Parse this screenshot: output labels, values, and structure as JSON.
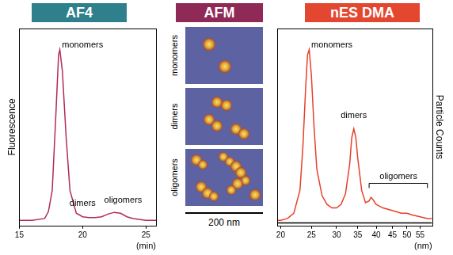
{
  "chart_data": [
    {
      "type": "line",
      "title": "AF4",
      "x": [
        15,
        16,
        17,
        17.3,
        17.6,
        17.9,
        18.1,
        18.2,
        18.4,
        18.7,
        19,
        19.5,
        20,
        20.5,
        21,
        21.5,
        22,
        22.5,
        23,
        23.5,
        24,
        25,
        25.8
      ],
      "series": [
        {
          "color": "#b22a5b",
          "values": [
            0.03,
            0.03,
            0.04,
            0.08,
            0.2,
            0.65,
            0.97,
            1.0,
            0.88,
            0.5,
            0.2,
            0.07,
            0.05,
            0.045,
            0.045,
            0.05,
            0.065,
            0.075,
            0.07,
            0.05,
            0.04,
            0.03,
            0.03
          ]
        }
      ],
      "xlim": [
        15,
        25.8
      ],
      "xticks": [
        15,
        20,
        25
      ],
      "ylim": [
        0,
        1.12
      ],
      "yticks": [],
      "xlabel": "(min)",
      "ylabel": "Fluorescence",
      "tick_labels": "x",
      "grid": false,
      "annotations": [
        {
          "text": "monomers",
          "x": 20.0,
          "y": 1.0
        },
        {
          "text": "dimers",
          "x": 20.0,
          "y": 0.1
        },
        {
          "text": "oligomers",
          "x": 23.2,
          "y": 0.12
        }
      ]
    },
    {
      "type": "line",
      "title": "nES DMA",
      "x": [
        19.5,
        20,
        21,
        22,
        23,
        23.5,
        24,
        24.3,
        24.6,
        25,
        25.5,
        26,
        27,
        28,
        29,
        30,
        31,
        32,
        33,
        33.5,
        34,
        34.5,
        35,
        36,
        37,
        38,
        38.5,
        39,
        40,
        42,
        44,
        46,
        48,
        50,
        52,
        55,
        58,
        60
      ],
      "series": [
        {
          "color": "#e8402a",
          "values": [
            0.03,
            0.03,
            0.04,
            0.07,
            0.2,
            0.45,
            0.8,
            0.97,
            1.0,
            0.85,
            0.55,
            0.32,
            0.17,
            0.12,
            0.1,
            0.1,
            0.12,
            0.18,
            0.35,
            0.5,
            0.55,
            0.5,
            0.38,
            0.2,
            0.13,
            0.14,
            0.16,
            0.15,
            0.12,
            0.1,
            0.09,
            0.08,
            0.07,
            0.07,
            0.06,
            0.05,
            0.04,
            0.04
          ]
        },
        {
          "color": "#000000",
          "values": [
            0.015,
            0.015,
            0.015,
            0.015,
            0.015,
            0.015,
            0.015,
            0.015,
            0.015,
            0.015,
            0.015,
            0.015,
            0.015,
            0.015,
            0.015,
            0.015,
            0.015,
            0.015,
            0.015,
            0.015,
            0.015,
            0.015,
            0.015,
            0.015,
            0.015,
            0.015,
            0.015,
            0.015,
            0.015,
            0.015,
            0.015,
            0.015,
            0.015,
            0.015,
            0.015,
            0.015,
            0.015,
            0.015
          ]
        }
      ],
      "log": "x",
      "xlim": [
        19.5,
        60
      ],
      "xticks": [
        20,
        25,
        30,
        35,
        40,
        45,
        50,
        55
      ],
      "ylim": [
        0,
        1.12
      ],
      "yticks": [],
      "xlabel": "(nm)",
      "ylabel": "Particle Counts",
      "tick_labels": "x",
      "grid": false,
      "annotations": [
        {
          "text": "monomers",
          "x": 29,
          "y": 1.0
        },
        {
          "text": "dimers",
          "x": 34,
          "y": 0.6
        },
        {
          "text": "oligomers",
          "x": 47,
          "y": 0.24,
          "span": [
            38,
            58
          ]
        }
      ]
    }
  ],
  "afm": {
    "title": "AFM",
    "labels": [
      "monomers",
      "dimers",
      "oligomers"
    ],
    "scale_bar": "200 nm"
  }
}
